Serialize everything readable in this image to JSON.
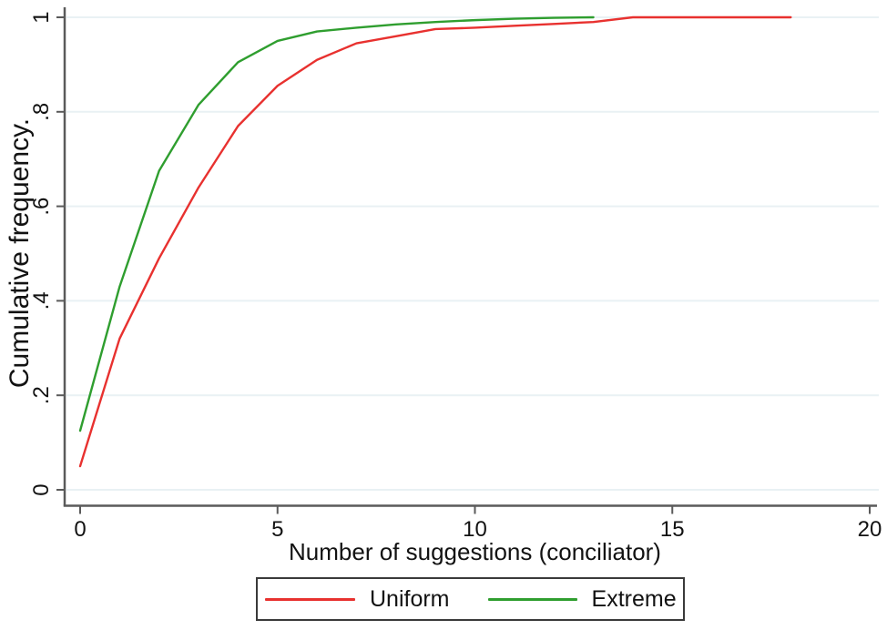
{
  "colors": {
    "background": "#ffffff",
    "axis": "#5a5a5a",
    "gridline": "#e9f1f4",
    "text": "#121212",
    "legend_border": "#3a3a3a",
    "uniform_red": "#e8312f",
    "extreme_green": "#2f9e2f"
  },
  "chart_data": {
    "type": "line",
    "title": "",
    "xlabel": "Number of suggestions (conciliator)",
    "ylabel": "Cumulative frequency.",
    "xlim": [
      0,
      20
    ],
    "ylim": [
      0,
      1
    ],
    "grid": "horizontal gridlines on, light blue",
    "legend_position": "bottom center, boxed",
    "x_ticks": {
      "values": [
        0,
        5,
        10,
        15,
        20
      ],
      "labels": [
        "0",
        "5",
        "10",
        "15",
        "20"
      ]
    },
    "y_ticks": {
      "values": [
        0,
        0.2,
        0.4,
        0.6,
        0.8,
        1
      ],
      "labels": [
        "0",
        ".2",
        ".4",
        ".6",
        ".8",
        "1"
      ]
    },
    "series": [
      {
        "name": "Uniform",
        "color": "#e8312f",
        "x": [
          0,
          1,
          2,
          3,
          4,
          5,
          6,
          7,
          8,
          9,
          10,
          11,
          12,
          13,
          14,
          15,
          16,
          17,
          18
        ],
        "y": [
          0.05,
          0.32,
          0.49,
          0.64,
          0.77,
          0.855,
          0.91,
          0.945,
          0.96,
          0.975,
          0.978,
          0.982,
          0.986,
          0.99,
          1,
          1,
          1,
          1,
          1
        ]
      },
      {
        "name": "Extreme",
        "color": "#2f9e2f",
        "x": [
          0,
          1,
          2,
          3,
          4,
          5,
          6,
          7,
          8,
          9,
          10,
          11,
          12,
          13
        ],
        "y": [
          0.125,
          0.43,
          0.675,
          0.815,
          0.905,
          0.95,
          0.97,
          0.978,
          0.985,
          0.99,
          0.994,
          0.997,
          0.999,
          1
        ]
      }
    ]
  }
}
